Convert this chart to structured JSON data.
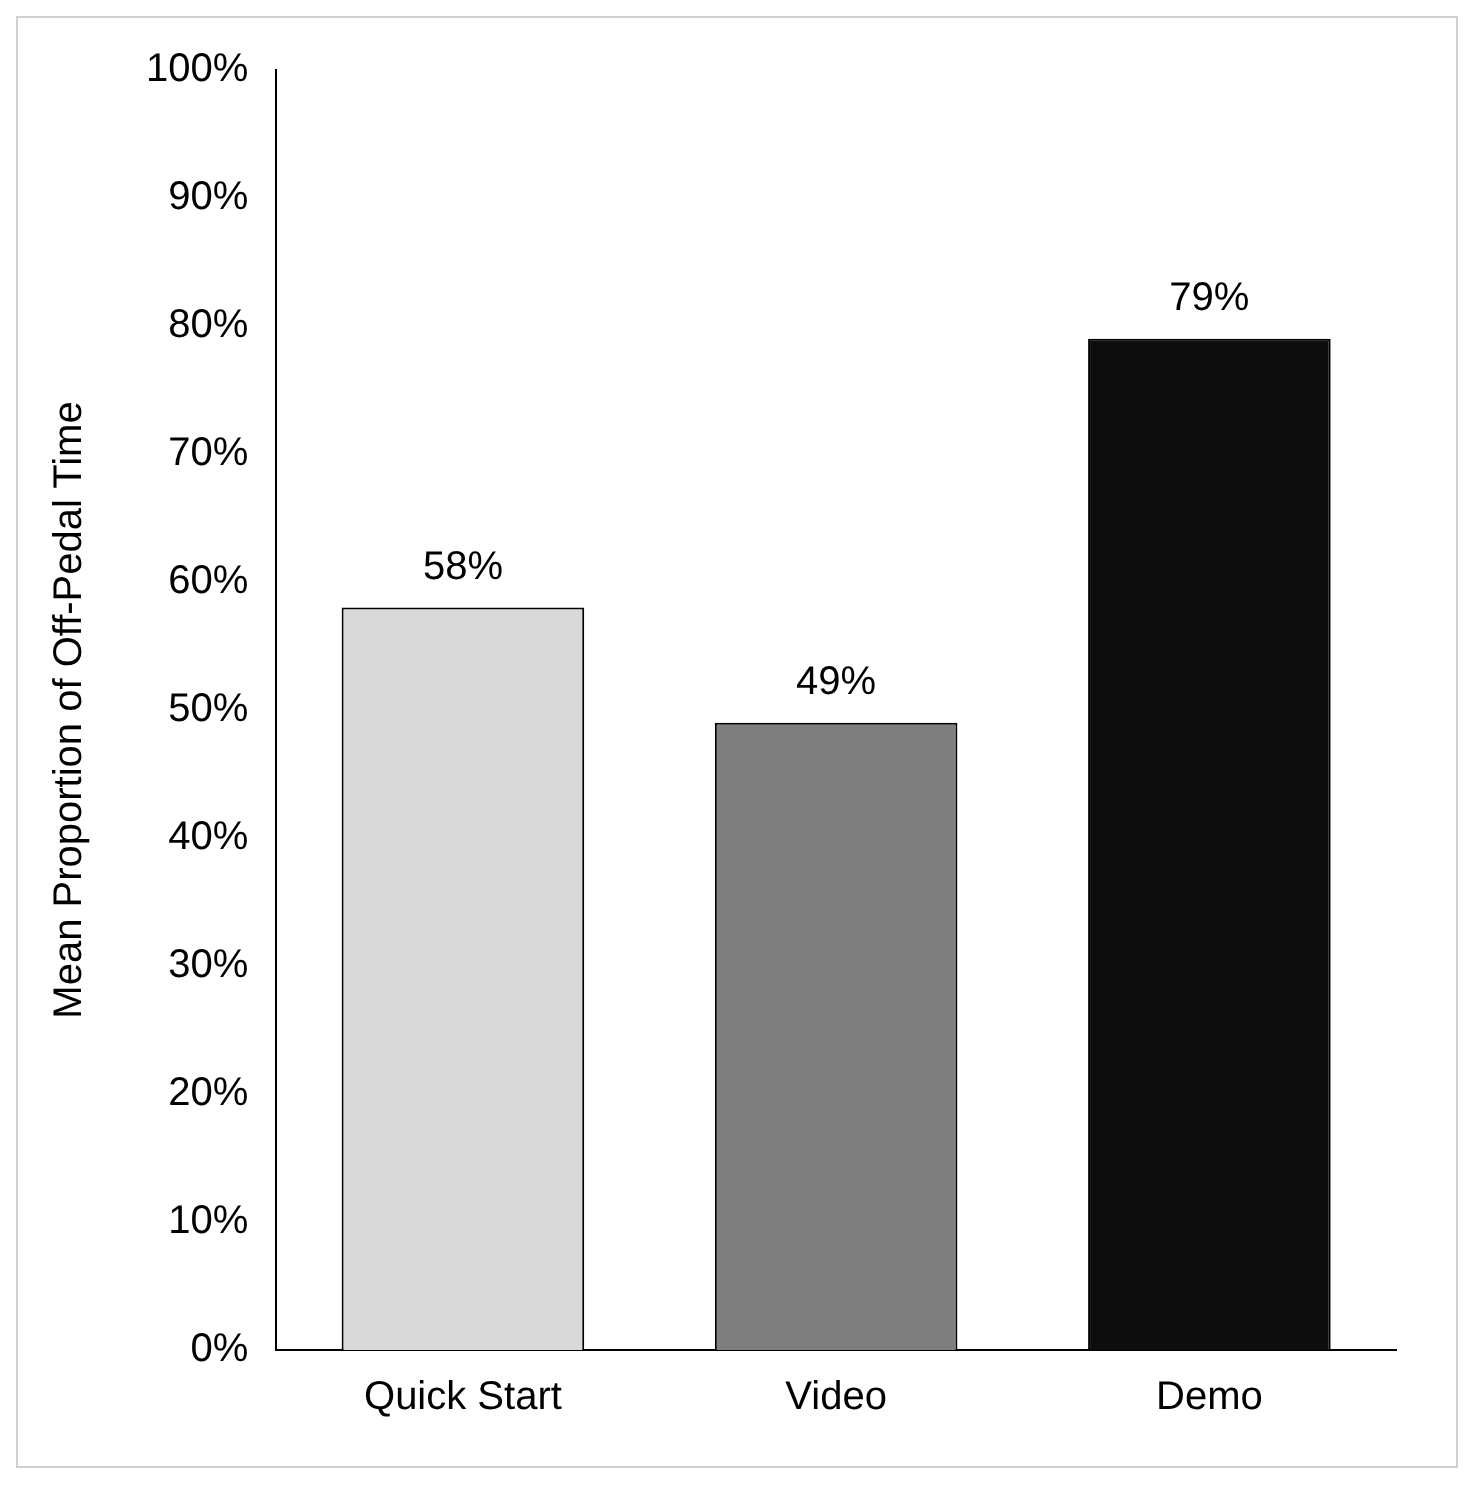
{
  "chart_data": {
    "type": "bar",
    "ylabel": "Mean Proportion of Off-Pedal Time",
    "categories": [
      "Quick Start",
      "Video",
      "Demo"
    ],
    "values": [
      58,
      49,
      79
    ],
    "colors": [
      "#d9d9d9",
      "#7f7f7f",
      "#0d0d0d"
    ],
    "value_labels": [
      "58%",
      "49%",
      "79%"
    ],
    "ylim": [
      0,
      100
    ],
    "yticks": [
      {
        "value": 0,
        "label": "0%"
      },
      {
        "value": 10,
        "label": "10%"
      },
      {
        "value": 20,
        "label": "20%"
      },
      {
        "value": 30,
        "label": "30%"
      },
      {
        "value": 40,
        "label": "40%"
      },
      {
        "value": 50,
        "label": "50%"
      },
      {
        "value": 60,
        "label": "60%"
      },
      {
        "value": 70,
        "label": "70%"
      },
      {
        "value": 80,
        "label": "80%"
      },
      {
        "value": 90,
        "label": "90%"
      },
      {
        "value": 100,
        "label": "100%"
      }
    ],
    "grid": false,
    "legend": false
  }
}
